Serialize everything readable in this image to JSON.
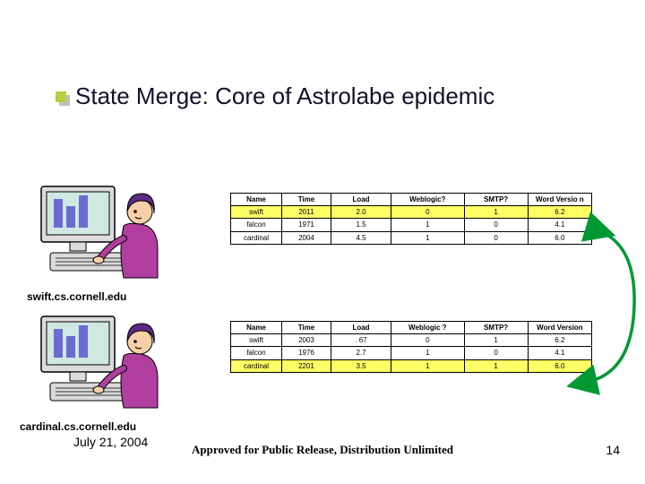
{
  "title": "State Merge: Core of Astrolabe epidemic",
  "host_label_1": "swift.cs.cornell.edu",
  "host_label_2": "cardinal.cs.cornell.edu",
  "date": "July 21, 2004",
  "footer": "Approved for Public Release, Distribution Unlimited",
  "page_number": "14",
  "colors": {
    "bullet": "#b4cf44",
    "highlight": "#ffff66",
    "arrow": "#009933",
    "monitor": "#cfe8e2",
    "monitor_frame": "#dcdcdc",
    "keyboard": "#dadada",
    "hair": "#5b2a83",
    "shirt": "#b13fa0",
    "skin": "#f9cfa8",
    "bars": "#6b6bd1"
  },
  "tables": {
    "t1": {
      "columns": [
        "Name",
        "Time",
        "Load",
        "Weblogic?",
        "SMTP?",
        "Word Versio n"
      ],
      "rows": [
        {
          "hl": true,
          "cells": [
            "swift",
            "2011",
            "2.0",
            "0",
            "1",
            "6.2"
          ]
        },
        {
          "hl": false,
          "cells": [
            "falcon",
            "1971",
            "1.5",
            "1",
            "0",
            "4.1"
          ]
        },
        {
          "hl": false,
          "cells": [
            "cardinal",
            "2004",
            "4.5",
            "1",
            "0",
            "6.0"
          ]
        }
      ]
    },
    "t2": {
      "columns": [
        "Name",
        "Time",
        "Load",
        "Weblogic ?",
        "SMTP?",
        "Word Version"
      ],
      "rows": [
        {
          "hl": false,
          "cells": [
            "swift",
            "2003",
            ". 67",
            "0",
            "1",
            "6.2"
          ]
        },
        {
          "hl": false,
          "cells": [
            "falcon",
            "1976",
            "2.7",
            "1",
            "0",
            "4.1"
          ]
        },
        {
          "hl": true,
          "cells": [
            "cardinal",
            "2201",
            "3.5",
            "1",
            "1",
            "6.0"
          ]
        }
      ]
    }
  }
}
